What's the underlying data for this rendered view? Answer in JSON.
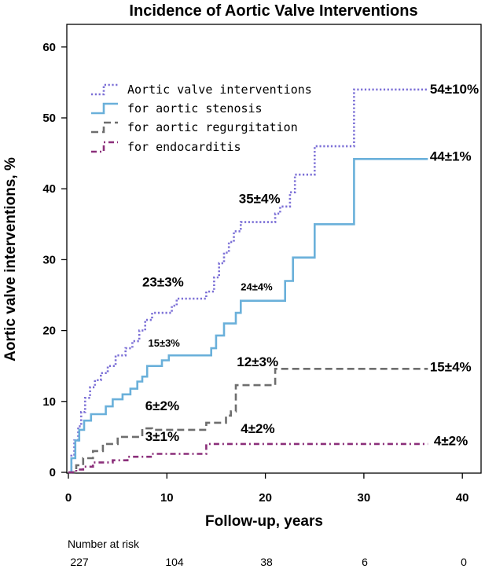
{
  "chart_data": {
    "type": "line",
    "title": "Incidence of Aortic Valve Interventions",
    "xlabel": "Follow-up, years",
    "ylabel": "Aortic valve interventions, %",
    "xlim": [
      0,
      42
    ],
    "ylim": [
      0,
      64
    ],
    "x_ticks": [
      "0",
      "10",
      "20",
      "30",
      "40"
    ],
    "y_ticks": [
      "0",
      "10",
      "20",
      "30",
      "40",
      "50",
      "60"
    ],
    "x_tick_values": [
      0,
      10,
      20,
      30,
      40
    ],
    "y_tick_values": [
      0,
      10,
      20,
      30,
      40,
      50,
      60
    ],
    "legend_position": "top-left",
    "series": [
      {
        "name": "Aortic valve interventions",
        "color": "#7b6fd6",
        "dash": "dotted",
        "points": [
          [
            0,
            0
          ],
          [
            0.3,
            2.5
          ],
          [
            0.6,
            4.5
          ],
          [
            1.0,
            6.5
          ],
          [
            1.3,
            8.5
          ],
          [
            1.7,
            10.5
          ],
          [
            2.2,
            12
          ],
          [
            2.7,
            13
          ],
          [
            3.3,
            14
          ],
          [
            4.0,
            15
          ],
          [
            4.8,
            16.5
          ],
          [
            5.8,
            17.5
          ],
          [
            6.5,
            18.5
          ],
          [
            7.2,
            20
          ],
          [
            7.8,
            21.5
          ],
          [
            8.5,
            22.5
          ],
          [
            10.5,
            23.5
          ],
          [
            11.0,
            24.5
          ],
          [
            14.0,
            25.5
          ],
          [
            14.8,
            27.5
          ],
          [
            15.3,
            29.5
          ],
          [
            15.8,
            31
          ],
          [
            16.3,
            32.5
          ],
          [
            16.8,
            34
          ],
          [
            17.5,
            35.3
          ],
          [
            21.0,
            36.5
          ],
          [
            21.5,
            37.5
          ],
          [
            22.5,
            39.5
          ],
          [
            23.0,
            42
          ],
          [
            25.0,
            46
          ],
          [
            29.0,
            54
          ],
          [
            36.5,
            54
          ]
        ]
      },
      {
        "name": "for aortic stenosis",
        "color": "#6ab0da",
        "dash": "solid",
        "points": [
          [
            0,
            0
          ],
          [
            0.3,
            2
          ],
          [
            0.7,
            4.5
          ],
          [
            1.1,
            6
          ],
          [
            1.6,
            7.3
          ],
          [
            2.3,
            8.2
          ],
          [
            3.8,
            9.3
          ],
          [
            4.5,
            10.3
          ],
          [
            5.5,
            11
          ],
          [
            6.3,
            11.8
          ],
          [
            7.0,
            12.8
          ],
          [
            7.5,
            13.5
          ],
          [
            8.0,
            15
          ],
          [
            9.5,
            15.8
          ],
          [
            10.2,
            16.5
          ],
          [
            14.5,
            17.5
          ],
          [
            15.0,
            19.3
          ],
          [
            15.8,
            21
          ],
          [
            17.0,
            22.5
          ],
          [
            17.5,
            24.2
          ],
          [
            22.0,
            27
          ],
          [
            22.8,
            30.3
          ],
          [
            25.0,
            35
          ],
          [
            29.0,
            44.2
          ],
          [
            36.5,
            44.2
          ]
        ]
      },
      {
        "name": "for aortic regurgitation",
        "color": "#6e6e6e",
        "dash": "dashed",
        "points": [
          [
            0,
            0
          ],
          [
            0.8,
            1
          ],
          [
            1.5,
            2
          ],
          [
            2.5,
            3
          ],
          [
            3.5,
            4
          ],
          [
            5.0,
            5
          ],
          [
            7.5,
            6.2
          ],
          [
            8.5,
            6
          ],
          [
            10,
            6
          ],
          [
            14.0,
            7
          ],
          [
            16.0,
            8
          ],
          [
            16.5,
            8.6
          ],
          [
            17.0,
            12.3
          ],
          [
            21.0,
            14.6
          ],
          [
            36.5,
            14.6
          ]
        ]
      },
      {
        "name": "for endocarditis",
        "color": "#8b2f7a",
        "dash": "dashdot",
        "points": [
          [
            0,
            0
          ],
          [
            0.8,
            0.4
          ],
          [
            1.5,
            0.8
          ],
          [
            2.5,
            1.4
          ],
          [
            4.5,
            1.7
          ],
          [
            6.0,
            2.2
          ],
          [
            8.5,
            2.6
          ],
          [
            14.0,
            4
          ],
          [
            36.5,
            4
          ]
        ]
      }
    ],
    "annotations": [
      {
        "text": "54±10%",
        "x": 36.7,
        "y": 54,
        "size": "big"
      },
      {
        "text": "44±1%",
        "x": 36.7,
        "y": 44.5,
        "size": "big"
      },
      {
        "text": "35±4%",
        "x": 17.3,
        "y": 38.5,
        "size": "big"
      },
      {
        "text": "23±3%",
        "x": 7.5,
        "y": 26.8,
        "size": "big"
      },
      {
        "text": "24±4%",
        "x": 17.5,
        "y": 26.2,
        "size": "small"
      },
      {
        "text": "15±3%",
        "x": 8.1,
        "y": 18.3,
        "size": "small"
      },
      {
        "text": "12±3%",
        "x": 17.1,
        "y": 15.5,
        "size": "big"
      },
      {
        "text": "15±4%",
        "x": 36.7,
        "y": 14.8,
        "size": "big"
      },
      {
        "text": "6±2%",
        "x": 7.8,
        "y": 9.3,
        "size": "big"
      },
      {
        "text": "3±1%",
        "x": 7.8,
        "y": 5.0,
        "size": "big"
      },
      {
        "text": "4±2%",
        "x": 17.5,
        "y": 6.1,
        "size": "big"
      },
      {
        "text": "4±2%",
        "x": 37.1,
        "y": 4.4,
        "size": "big"
      }
    ],
    "risk_table": {
      "label": "Number at risk",
      "values": [
        "227",
        "104",
        "38",
        "6",
        "0"
      ]
    }
  }
}
